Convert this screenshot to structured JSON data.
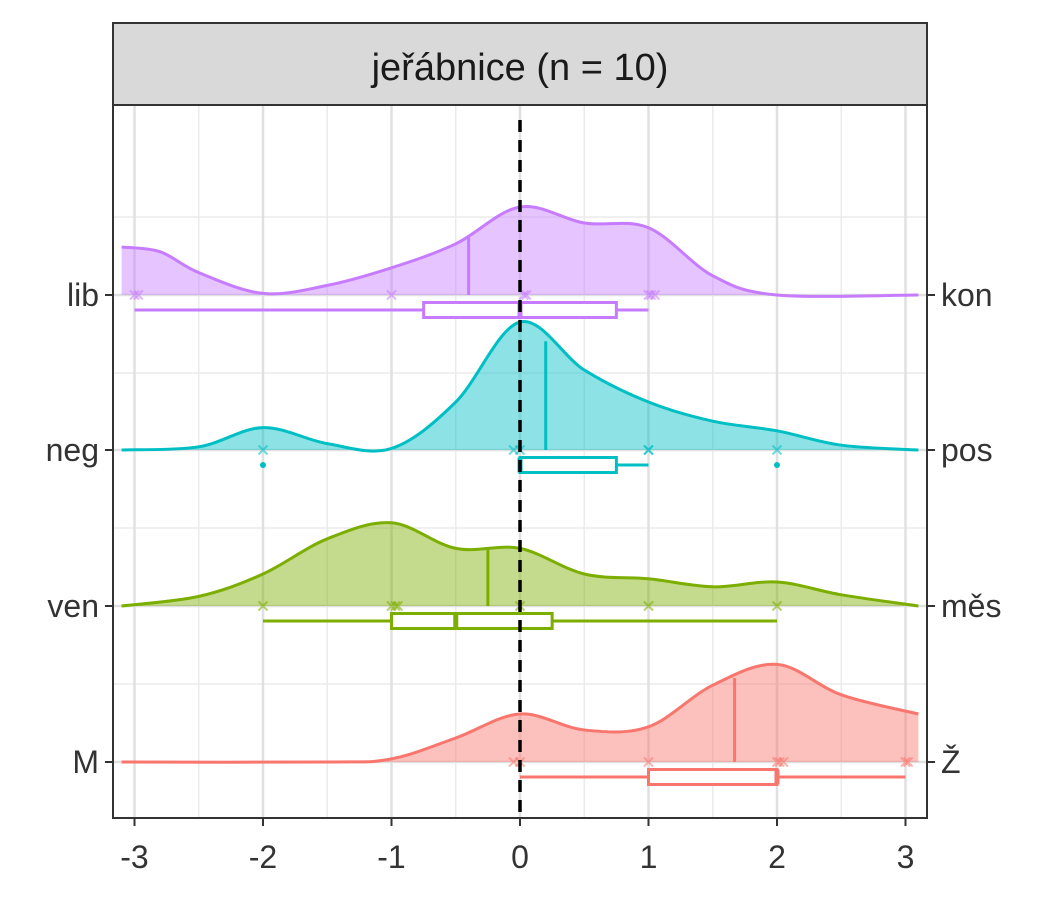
{
  "chart_data": {
    "type": "ridgeline",
    "facet_title": "jeřábnice (n = 10)",
    "xlim": [
      -3.12,
      3.12
    ],
    "x_ticks": [
      -3,
      -2,
      -1,
      0,
      1,
      2,
      3
    ],
    "x_tick_labels": [
      "-3",
      "-2",
      "-1",
      "0",
      "1",
      "2",
      "3"
    ],
    "reference_line": 0,
    "grid": true,
    "xlabel": "",
    "ylabel": "",
    "series": [
      {
        "left_label": "lib",
        "right_label": "kon",
        "color": "#C77CFF",
        "mean": -0.4,
        "density": [
          [
            -3.1,
            0.3
          ],
          [
            -2.8,
            0.27
          ],
          [
            -2.5,
            0.14
          ],
          [
            -2.0,
            0.01
          ],
          [
            -1.5,
            0.06
          ],
          [
            -1.0,
            0.17
          ],
          [
            -0.5,
            0.32
          ],
          [
            0.0,
            0.55
          ],
          [
            0.5,
            0.45
          ],
          [
            1.0,
            0.42
          ],
          [
            1.5,
            0.12
          ],
          [
            2.0,
            0.0
          ],
          [
            3.1,
            0.0
          ]
        ],
        "points": [
          -3.0,
          -2.97,
          -1.0,
          0.03,
          0.05,
          1.0,
          1.02,
          1.05
        ],
        "box": {
          "whisker_low": -3.0,
          "q1": -0.75,
          "median": 0.0,
          "q3": 0.75,
          "whisker_high": 1.0,
          "outliers": []
        }
      },
      {
        "left_label": "neg",
        "right_label": "pos",
        "color": "#00BFC4",
        "mean": 0.2,
        "density": [
          [
            -3.1,
            0.0
          ],
          [
            -2.5,
            0.02
          ],
          [
            -2.0,
            0.14
          ],
          [
            -1.5,
            0.04
          ],
          [
            -1.0,
            0.01
          ],
          [
            -0.5,
            0.3
          ],
          [
            0.0,
            0.8
          ],
          [
            0.5,
            0.5
          ],
          [
            1.0,
            0.3
          ],
          [
            1.5,
            0.18
          ],
          [
            2.0,
            0.12
          ],
          [
            2.5,
            0.03
          ],
          [
            3.1,
            0.0
          ]
        ],
        "points": [
          -2.0,
          -0.05,
          0.0,
          1.0,
          1.0,
          2.0
        ],
        "box": {
          "whisker_low": 0.0,
          "q1": 0.0,
          "median": 0.0,
          "q3": 0.75,
          "whisker_high": 1.0,
          "outliers": [
            -2.0,
            2.0
          ]
        }
      },
      {
        "left_label": "ven",
        "right_label": "měs",
        "color": "#7CAE00",
        "mean": -0.25,
        "density": [
          [
            -3.1,
            0.0
          ],
          [
            -2.5,
            0.06
          ],
          [
            -2.0,
            0.2
          ],
          [
            -1.5,
            0.42
          ],
          [
            -1.0,
            0.52
          ],
          [
            -0.5,
            0.36
          ],
          [
            0.0,
            0.36
          ],
          [
            0.5,
            0.2
          ],
          [
            1.0,
            0.17
          ],
          [
            1.5,
            0.12
          ],
          [
            2.0,
            0.15
          ],
          [
            2.5,
            0.07
          ],
          [
            3.1,
            0.0
          ]
        ],
        "points": [
          -2.0,
          -1.0,
          -0.97,
          -0.95,
          0.0,
          1.0,
          2.0
        ],
        "box": {
          "whisker_low": -2.0,
          "q1": -1.0,
          "median": -0.5,
          "q3": 0.25,
          "whisker_high": 2.0,
          "outliers": []
        }
      },
      {
        "left_label": "M",
        "right_label": "Ž",
        "color": "#F8766D",
        "mean": 1.67,
        "density": [
          [
            -3.1,
            0.0
          ],
          [
            -1.5,
            0.0
          ],
          [
            -1.0,
            0.02
          ],
          [
            -0.5,
            0.15
          ],
          [
            0.0,
            0.3
          ],
          [
            0.5,
            0.2
          ],
          [
            1.0,
            0.22
          ],
          [
            1.5,
            0.48
          ],
          [
            2.0,
            0.61
          ],
          [
            2.5,
            0.42
          ],
          [
            3.1,
            0.3
          ]
        ],
        "points": [
          -0.05,
          0.0,
          1.0,
          2.0,
          2.02,
          2.05,
          3.0,
          3.02
        ],
        "box": {
          "whisker_low": 0.0,
          "q1": 1.0,
          "median": 2.0,
          "q3": 2.0,
          "whisker_high": 3.0,
          "outliers": []
        }
      }
    ]
  }
}
